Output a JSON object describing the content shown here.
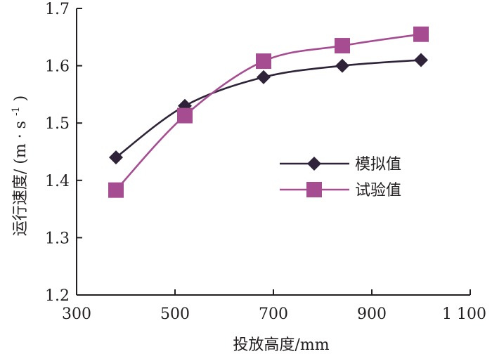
{
  "chart_data": {
    "type": "line",
    "xlabel": "投放高度/mm",
    "ylabel_main": "运行速度/",
    "ylabel_unit_open": "(m · s",
    "ylabel_unit_exp": "-1",
    "ylabel_unit_close": ")",
    "xlim": [
      300,
      1100
    ],
    "ylim": [
      1.2,
      1.7
    ],
    "xticks": [
      300,
      500,
      700,
      900,
      1100
    ],
    "xtick_labels": [
      "300",
      "500",
      "700",
      "900",
      "1 100"
    ],
    "yticks": [
      1.2,
      1.3,
      1.4,
      1.5,
      1.6,
      1.7
    ],
    "ytick_labels": [
      "1.2",
      "1.3",
      "1.4",
      "1.5",
      "1.6",
      "1.7"
    ],
    "grid": false,
    "legend_position": "center-right",
    "series": [
      {
        "name": "模拟值",
        "marker": "diamond",
        "color": "#2e2338",
        "x": [
          380,
          520,
          680,
          840,
          1000
        ],
        "y": [
          1.44,
          1.53,
          1.58,
          1.6,
          1.61
        ]
      },
      {
        "name": "试验值",
        "marker": "square",
        "color": "#a64d92",
        "x": [
          380,
          520,
          680,
          840,
          1000
        ],
        "y": [
          1.383,
          1.513,
          1.608,
          1.635,
          1.655
        ]
      }
    ]
  }
}
